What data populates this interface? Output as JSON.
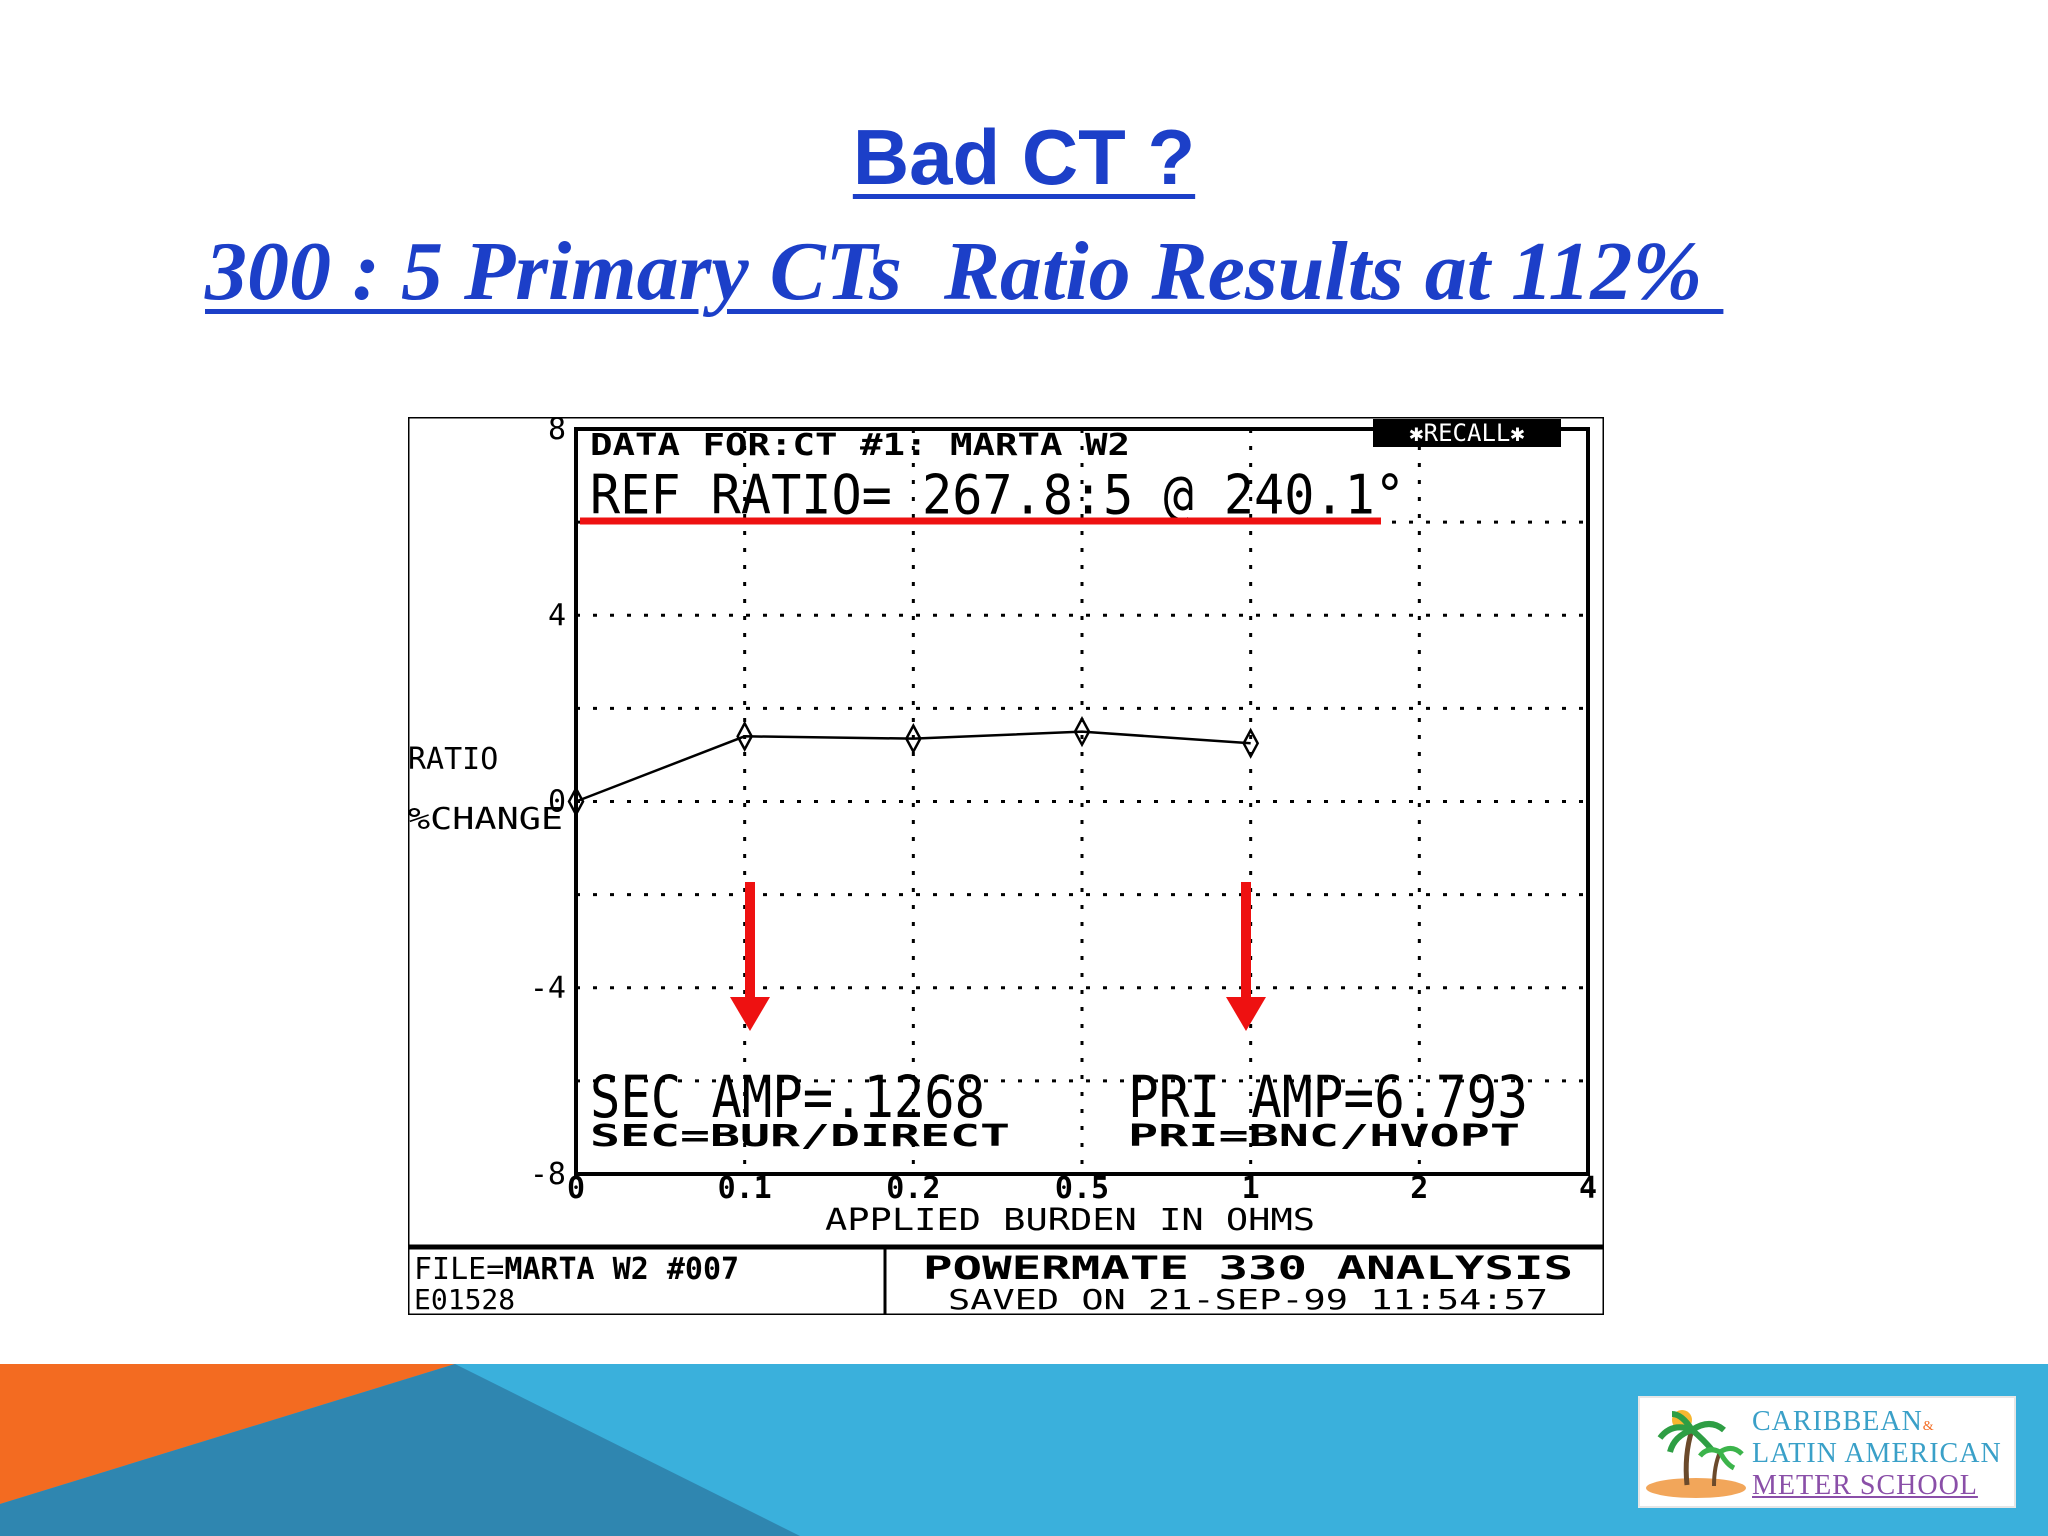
{
  "slide": {
    "title": "Bad CT ?",
    "subtitle": "300 : 5 Primary CTs  Ratio Results at 112% "
  },
  "screen": {
    "header_line1": "DATA FOR:CT #1: MARTA W2",
    "recall_badge": "✱RECALL✱",
    "ref_ratio": "REF RATIO= 267.8:5 @ 240.1°",
    "sec_amp": "SEC AMP=.1268",
    "sec_source": "SEC=BUR/DIRECT",
    "pri_amp": "PRI AMP=6.793",
    "pri_source": "PRI=BNC/HVOPT",
    "footer_file_label": "FILE=",
    "footer_file_name": "MARTA W2 #007",
    "footer_id": "E01528",
    "footer_title": "POWERMATE 330 ANALYSIS",
    "footer_saved": "SAVED ON 21-SEP-99 11:54:57"
  },
  "chart_data": {
    "type": "line",
    "xlabel": "APPLIED BURDEN IN OHMS",
    "ylabel_line1": "RATIO",
    "ylabel_line2": "%CHANGE",
    "x_ticks": [
      "0",
      "0.1",
      "0.2",
      "0.5",
      "1",
      "2",
      "4"
    ],
    "y_ticks": [
      8,
      4,
      0,
      -4,
      -8
    ],
    "ylim": [
      -8,
      8
    ],
    "x_scale": "categorical (non-linear burden steps)",
    "grid": true,
    "series": [
      {
        "x": [
          "0",
          "0.1",
          "0.2",
          "0.5",
          "1"
        ],
        "values": [
          0,
          1.4,
          1.35,
          1.5,
          1.25
        ]
      }
    ],
    "annotations": {
      "red_underline": "REF RATIO",
      "red_arrows_at_x": [
        "0.1",
        "1"
      ]
    }
  },
  "branding": {
    "logo_line1": "CARIBBEAN",
    "logo_line1_small": "&",
    "logo_line2": "LATIN AMERICAN",
    "logo_line3": "METER SCHOOL"
  },
  "colors": {
    "title": "#1c3fc8",
    "annotation_red": "#ee1111",
    "band_blue": "#3ab0dc",
    "band_orange": "#f36b21",
    "band_dark": "#2f86b0"
  }
}
